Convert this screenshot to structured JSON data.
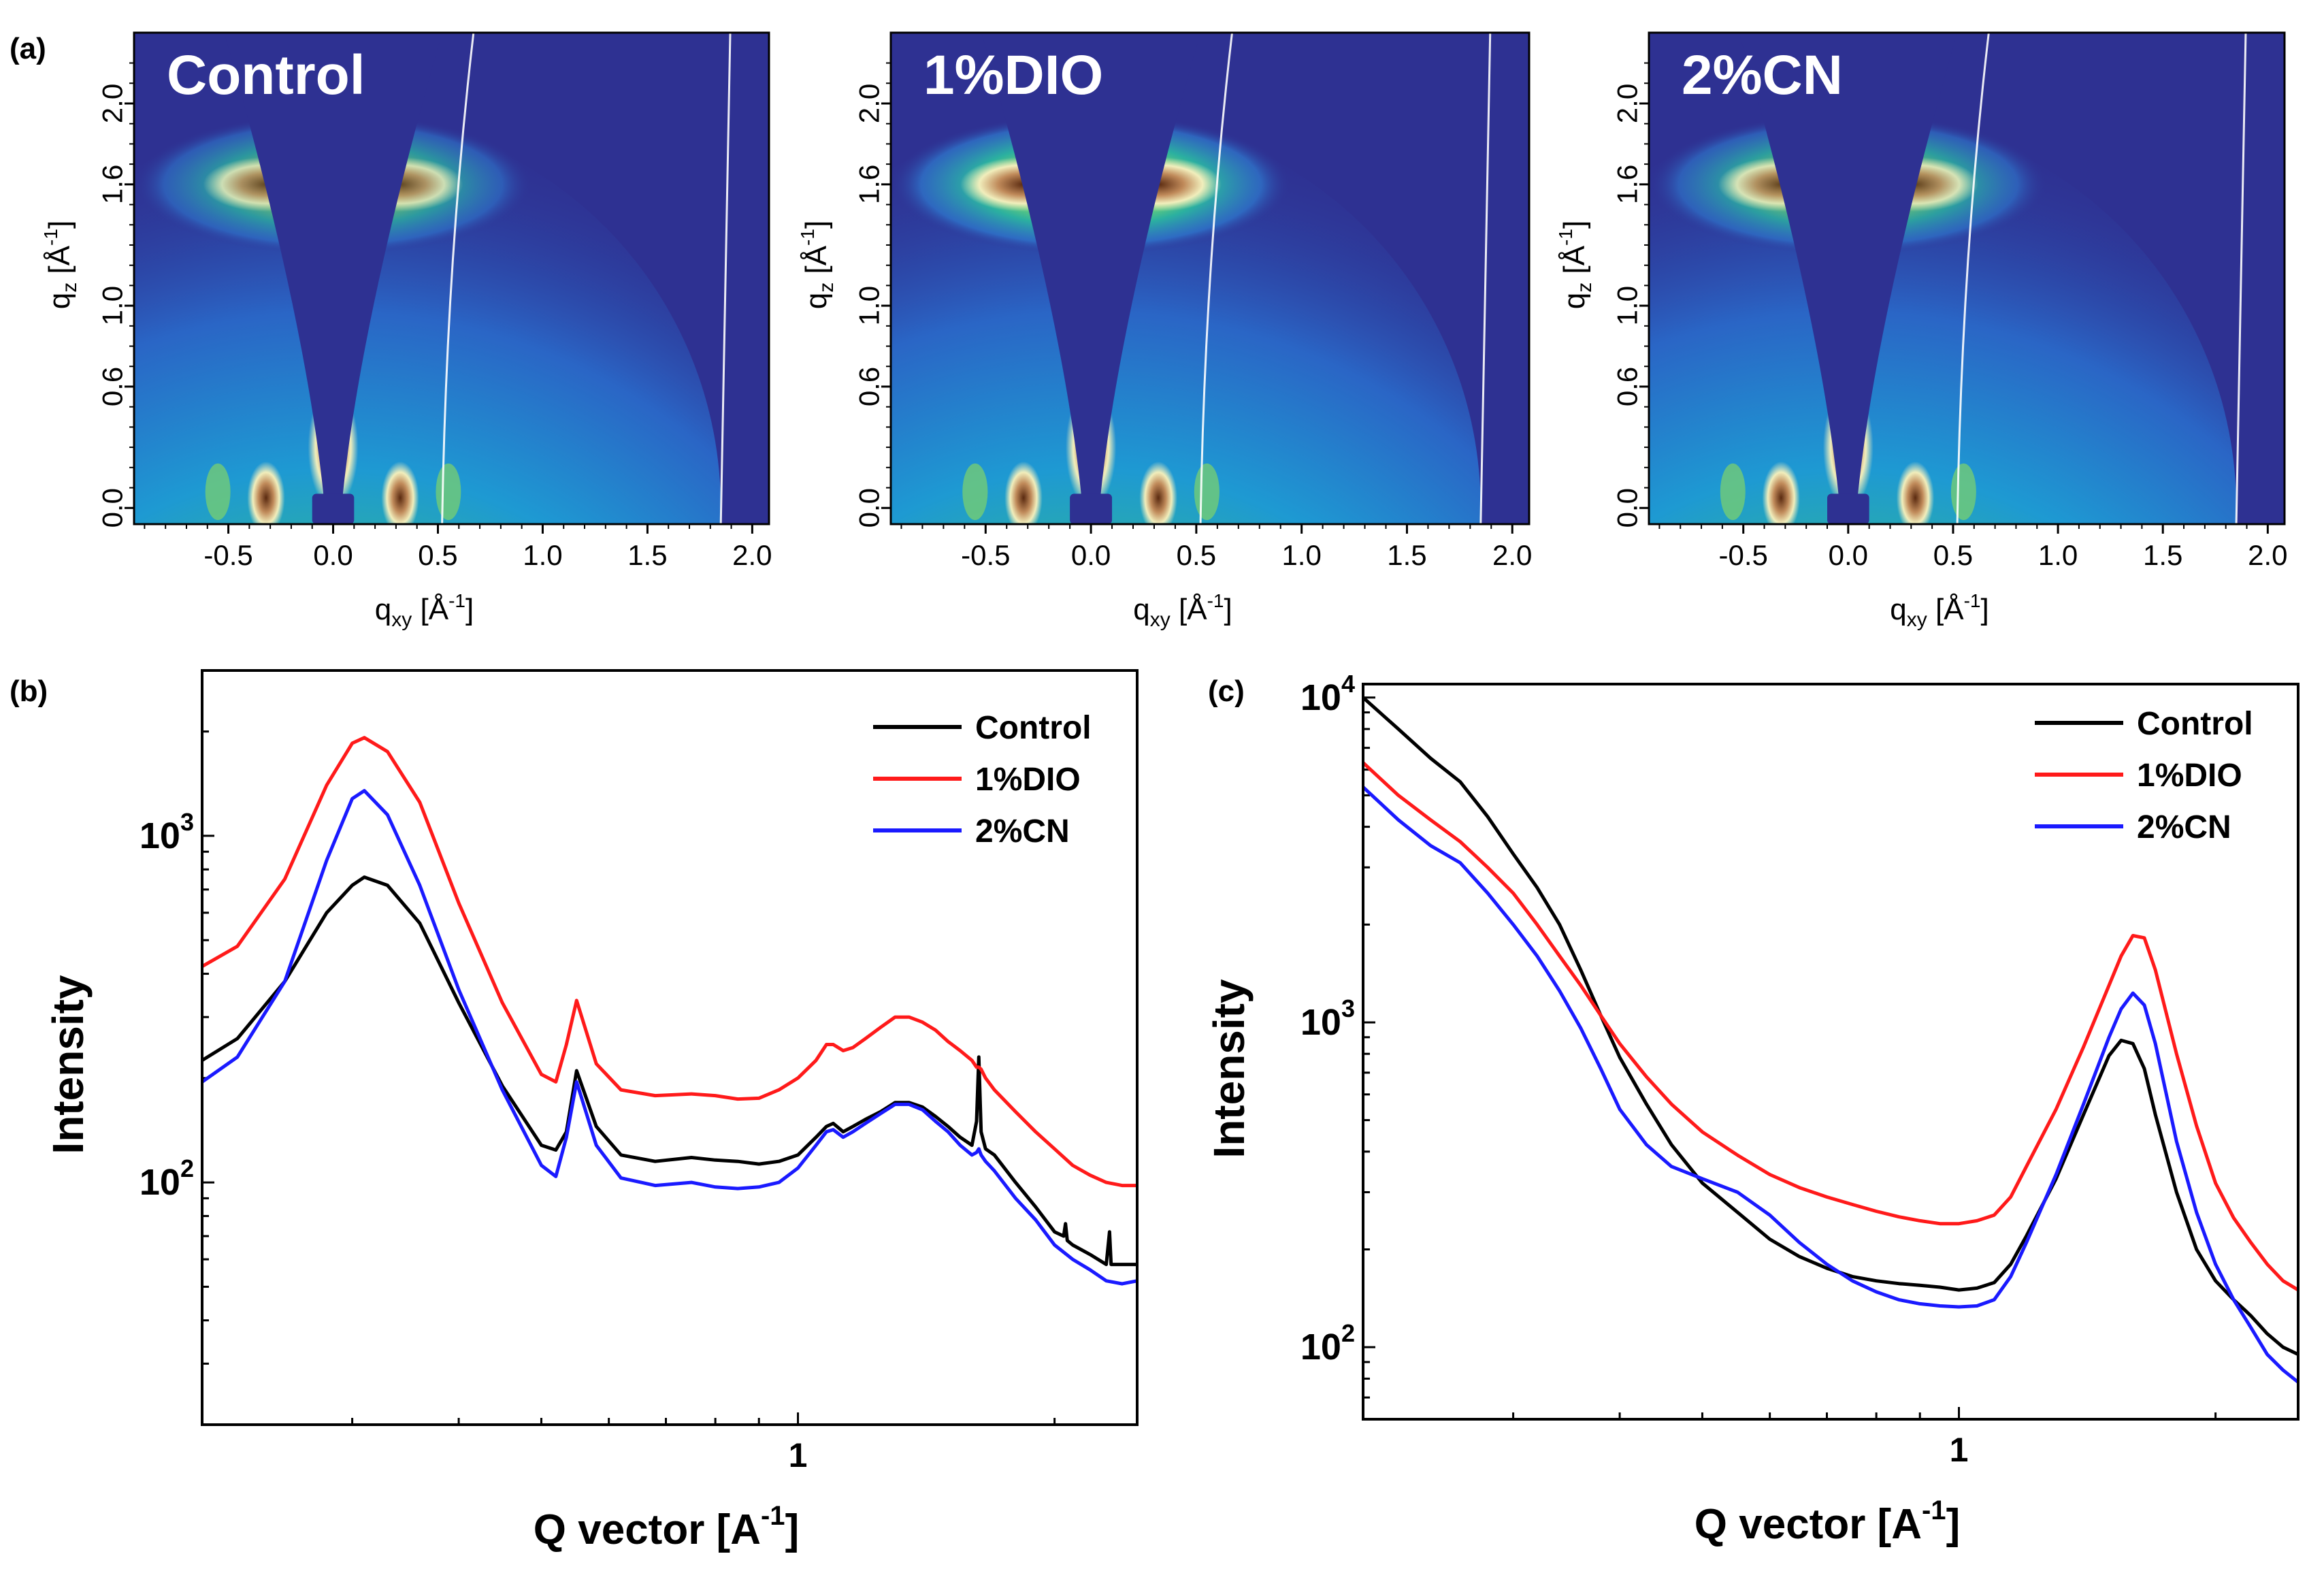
{
  "figure": {
    "panel_labels": {
      "a": "(a)",
      "b": "(b)",
      "c": "(c)"
    }
  },
  "colors": {
    "control": "#000000",
    "dio": "#ff1a1a",
    "cn": "#1a1aff",
    "gi_background": "#2e3192"
  },
  "chart_data": [
    {
      "panel": "(a)",
      "type": "heatmap",
      "subpanels": [
        {
          "title": "Control"
        },
        {
          "title": "1%DIO"
        },
        {
          "title": "2%CN"
        }
      ],
      "xlabel_main": "q",
      "xlabel_sub": "xy",
      "xlabel_unit": " [Å",
      "xlabel_sup": "-1",
      "xlabel_end": "]",
      "ylabel_main": "q",
      "ylabel_sub": "z",
      "ylabel_unit": " [Å",
      "ylabel_sup": "-1",
      "ylabel_end": "]",
      "xlim": [
        -0.95,
        2.08
      ],
      "ylim": [
        -0.08,
        2.35
      ],
      "xticks": [
        -0.5,
        0.0,
        0.5,
        1.0,
        1.5,
        2.0
      ],
      "xtick_labels": [
        "-0.5",
        "0.0",
        "0.5",
        "1.0",
        "1.5",
        "2.0"
      ],
      "yticks": [
        0.0,
        0.6,
        1.0,
        1.6,
        2.0
      ],
      "ytick_labels": [
        "0.0",
        "0.6",
        "1.0",
        "1.6",
        "2.0"
      ],
      "features": {
        "pi_pi_peak_qz": 1.6,
        "lamellar_peak_qz": 0.3,
        "edge_lines_qxy": [
          0.52,
          1.85
        ]
      }
    },
    {
      "panel": "(b)",
      "type": "line",
      "xscale": "log",
      "yscale": "log",
      "xlim": [
        0.2,
        2.5
      ],
      "ylim": [
        20,
        3000
      ],
      "xlabel": "Q vector [A",
      "xlabel_sup": "-1",
      "xlabel_end": "]",
      "ylabel": "Intensity",
      "xtick_labels": [
        {
          "v": 1,
          "t": "1"
        }
      ],
      "ytick_labels": [
        {
          "v": 100,
          "base": "10",
          "exp": "2"
        },
        {
          "v": 1000,
          "base": "10",
          "exp": "3"
        }
      ],
      "legend_position": "top-right",
      "series": [
        {
          "name": "Control",
          "color": "#000000",
          "x": [
            0.2,
            0.22,
            0.25,
            0.28,
            0.3,
            0.31,
            0.33,
            0.36,
            0.4,
            0.45,
            0.5,
            0.52,
            0.535,
            0.55,
            0.58,
            0.62,
            0.68,
            0.75,
            0.8,
            0.85,
            0.9,
            0.95,
            1.0,
            1.05,
            1.08,
            1.1,
            1.13,
            1.16,
            1.2,
            1.25,
            1.3,
            1.35,
            1.4,
            1.45,
            1.5,
            1.55,
            1.6,
            1.62,
            1.63,
            1.64,
            1.66,
            1.7,
            1.8,
            1.9,
            2.0,
            2.05,
            2.06,
            2.07,
            2.1,
            2.2,
            2.3,
            2.32,
            2.33,
            2.36,
            2.5
          ],
          "y": [
            225,
            260,
            380,
            600,
            720,
            760,
            720,
            560,
            330,
            190,
            128,
            124,
            140,
            210,
            145,
            120,
            115,
            118,
            116,
            115,
            113,
            115,
            120,
            135,
            145,
            148,
            140,
            145,
            152,
            160,
            170,
            170,
            165,
            155,
            145,
            135,
            128,
            150,
            230,
            140,
            125,
            120,
            100,
            85,
            72,
            70,
            76,
            68,
            66,
            62,
            58,
            72,
            58,
            58,
            58
          ]
        },
        {
          "name": "1%DIO",
          "color": "#ff1a1a",
          "x": [
            0.2,
            0.22,
            0.25,
            0.28,
            0.3,
            0.31,
            0.33,
            0.36,
            0.4,
            0.45,
            0.5,
            0.52,
            0.535,
            0.55,
            0.58,
            0.62,
            0.68,
            0.75,
            0.8,
            0.85,
            0.9,
            0.95,
            1.0,
            1.05,
            1.08,
            1.1,
            1.13,
            1.16,
            1.2,
            1.25,
            1.3,
            1.35,
            1.4,
            1.45,
            1.5,
            1.55,
            1.6,
            1.62,
            1.63,
            1.64,
            1.66,
            1.7,
            1.8,
            1.9,
            2.0,
            2.1,
            2.2,
            2.3,
            2.4,
            2.5
          ],
          "y": [
            420,
            480,
            750,
            1400,
            1850,
            1920,
            1750,
            1250,
            640,
            330,
            205,
            195,
            250,
            335,
            220,
            185,
            178,
            180,
            178,
            174,
            175,
            185,
            200,
            225,
            250,
            250,
            240,
            245,
            260,
            280,
            300,
            300,
            290,
            275,
            255,
            240,
            225,
            215,
            215,
            212,
            200,
            185,
            160,
            140,
            125,
            112,
            105,
            100,
            98,
            98
          ]
        },
        {
          "name": "2%CN",
          "color": "#1a1aff",
          "x": [
            0.2,
            0.22,
            0.25,
            0.28,
            0.3,
            0.31,
            0.33,
            0.36,
            0.4,
            0.45,
            0.5,
            0.52,
            0.535,
            0.55,
            0.58,
            0.62,
            0.68,
            0.75,
            0.8,
            0.85,
            0.9,
            0.95,
            1.0,
            1.05,
            1.08,
            1.1,
            1.13,
            1.16,
            1.2,
            1.25,
            1.3,
            1.35,
            1.4,
            1.45,
            1.5,
            1.55,
            1.6,
            1.62,
            1.63,
            1.64,
            1.66,
            1.7,
            1.8,
            1.9,
            2.0,
            2.1,
            2.2,
            2.3,
            2.4,
            2.5
          ],
          "y": [
            195,
            230,
            380,
            850,
            1280,
            1350,
            1150,
            720,
            360,
            185,
            112,
            104,
            135,
            195,
            128,
            103,
            98,
            100,
            97,
            96,
            97,
            100,
            110,
            128,
            140,
            142,
            135,
            140,
            148,
            158,
            168,
            168,
            162,
            150,
            140,
            128,
            120,
            122,
            125,
            120,
            115,
            108,
            90,
            78,
            66,
            60,
            56,
            52,
            51,
            52
          ]
        }
      ],
      "legend": [
        "Control",
        "1%DIO",
        "2%CN"
      ]
    },
    {
      "panel": "(c)",
      "type": "line",
      "xscale": "log",
      "yscale": "log",
      "xlim": [
        0.2,
        2.5
      ],
      "ylim": [
        60,
        11000
      ],
      "xlabel": "Q vector [A",
      "xlabel_sup": "-1",
      "xlabel_end": "]",
      "ylabel": "Intensity",
      "xtick_labels": [
        {
          "v": 1,
          "t": "1"
        }
      ],
      "ytick_labels": [
        {
          "v": 100,
          "base": "10",
          "exp": "2"
        },
        {
          "v": 1000,
          "base": "10",
          "exp": "3"
        },
        {
          "v": 10000,
          "base": "10",
          "exp": "4"
        }
      ],
      "legend_position": "top-right",
      "series": [
        {
          "name": "Control",
          "color": "#000000",
          "x": [
            0.2,
            0.22,
            0.24,
            0.26,
            0.28,
            0.3,
            0.32,
            0.34,
            0.36,
            0.38,
            0.4,
            0.43,
            0.46,
            0.5,
            0.55,
            0.6,
            0.65,
            0.7,
            0.75,
            0.8,
            0.85,
            0.9,
            0.95,
            1.0,
            1.05,
            1.1,
            1.15,
            1.2,
            1.3,
            1.4,
            1.5,
            1.55,
            1.6,
            1.65,
            1.7,
            1.8,
            1.9,
            2.0,
            2.1,
            2.2,
            2.3,
            2.4,
            2.5
          ],
          "y": [
            10000,
            8000,
            6500,
            5500,
            4300,
            3300,
            2600,
            2000,
            1450,
            1050,
            780,
            560,
            420,
            320,
            260,
            215,
            190,
            175,
            165,
            160,
            157,
            155,
            153,
            150,
            152,
            158,
            180,
            220,
            330,
            520,
            790,
            880,
            860,
            720,
            520,
            300,
            200,
            160,
            140,
            125,
            110,
            100,
            95
          ]
        },
        {
          "name": "1%DIO",
          "color": "#ff1a1a",
          "x": [
            0.2,
            0.22,
            0.24,
            0.26,
            0.28,
            0.3,
            0.32,
            0.34,
            0.36,
            0.38,
            0.4,
            0.43,
            0.46,
            0.5,
            0.55,
            0.6,
            0.65,
            0.7,
            0.75,
            0.8,
            0.85,
            0.9,
            0.95,
            1.0,
            1.05,
            1.1,
            1.15,
            1.2,
            1.3,
            1.4,
            1.5,
            1.55,
            1.6,
            1.65,
            1.7,
            1.8,
            1.9,
            2.0,
            2.1,
            2.2,
            2.3,
            2.4,
            2.5
          ],
          "y": [
            6300,
            5000,
            4200,
            3600,
            3000,
            2500,
            2000,
            1600,
            1300,
            1050,
            860,
            680,
            560,
            460,
            390,
            340,
            310,
            290,
            275,
            262,
            252,
            245,
            240,
            240,
            245,
            255,
            290,
            360,
            540,
            840,
            1300,
            1600,
            1850,
            1820,
            1450,
            800,
            480,
            320,
            250,
            210,
            180,
            160,
            150
          ]
        },
        {
          "name": "2%CN",
          "color": "#1a1aff",
          "x": [
            0.2,
            0.22,
            0.24,
            0.26,
            0.28,
            0.3,
            0.32,
            0.34,
            0.36,
            0.38,
            0.4,
            0.43,
            0.46,
            0.5,
            0.55,
            0.6,
            0.65,
            0.7,
            0.75,
            0.8,
            0.85,
            0.9,
            0.95,
            1.0,
            1.05,
            1.1,
            1.15,
            1.2,
            1.3,
            1.4,
            1.5,
            1.55,
            1.6,
            1.65,
            1.7,
            1.8,
            1.9,
            2.0,
            2.1,
            2.2,
            2.3,
            2.4,
            2.5
          ],
          "y": [
            5300,
            4200,
            3500,
            3100,
            2500,
            2000,
            1600,
            1250,
            960,
            720,
            540,
            420,
            360,
            330,
            300,
            255,
            210,
            180,
            160,
            148,
            140,
            136,
            134,
            133,
            134,
            140,
            165,
            210,
            340,
            560,
            900,
            1100,
            1230,
            1130,
            860,
            430,
            260,
            180,
            140,
            115,
            95,
            85,
            78
          ]
        }
      ],
      "legend": [
        "Control",
        "1%DIO",
        "2%CN"
      ]
    }
  ]
}
